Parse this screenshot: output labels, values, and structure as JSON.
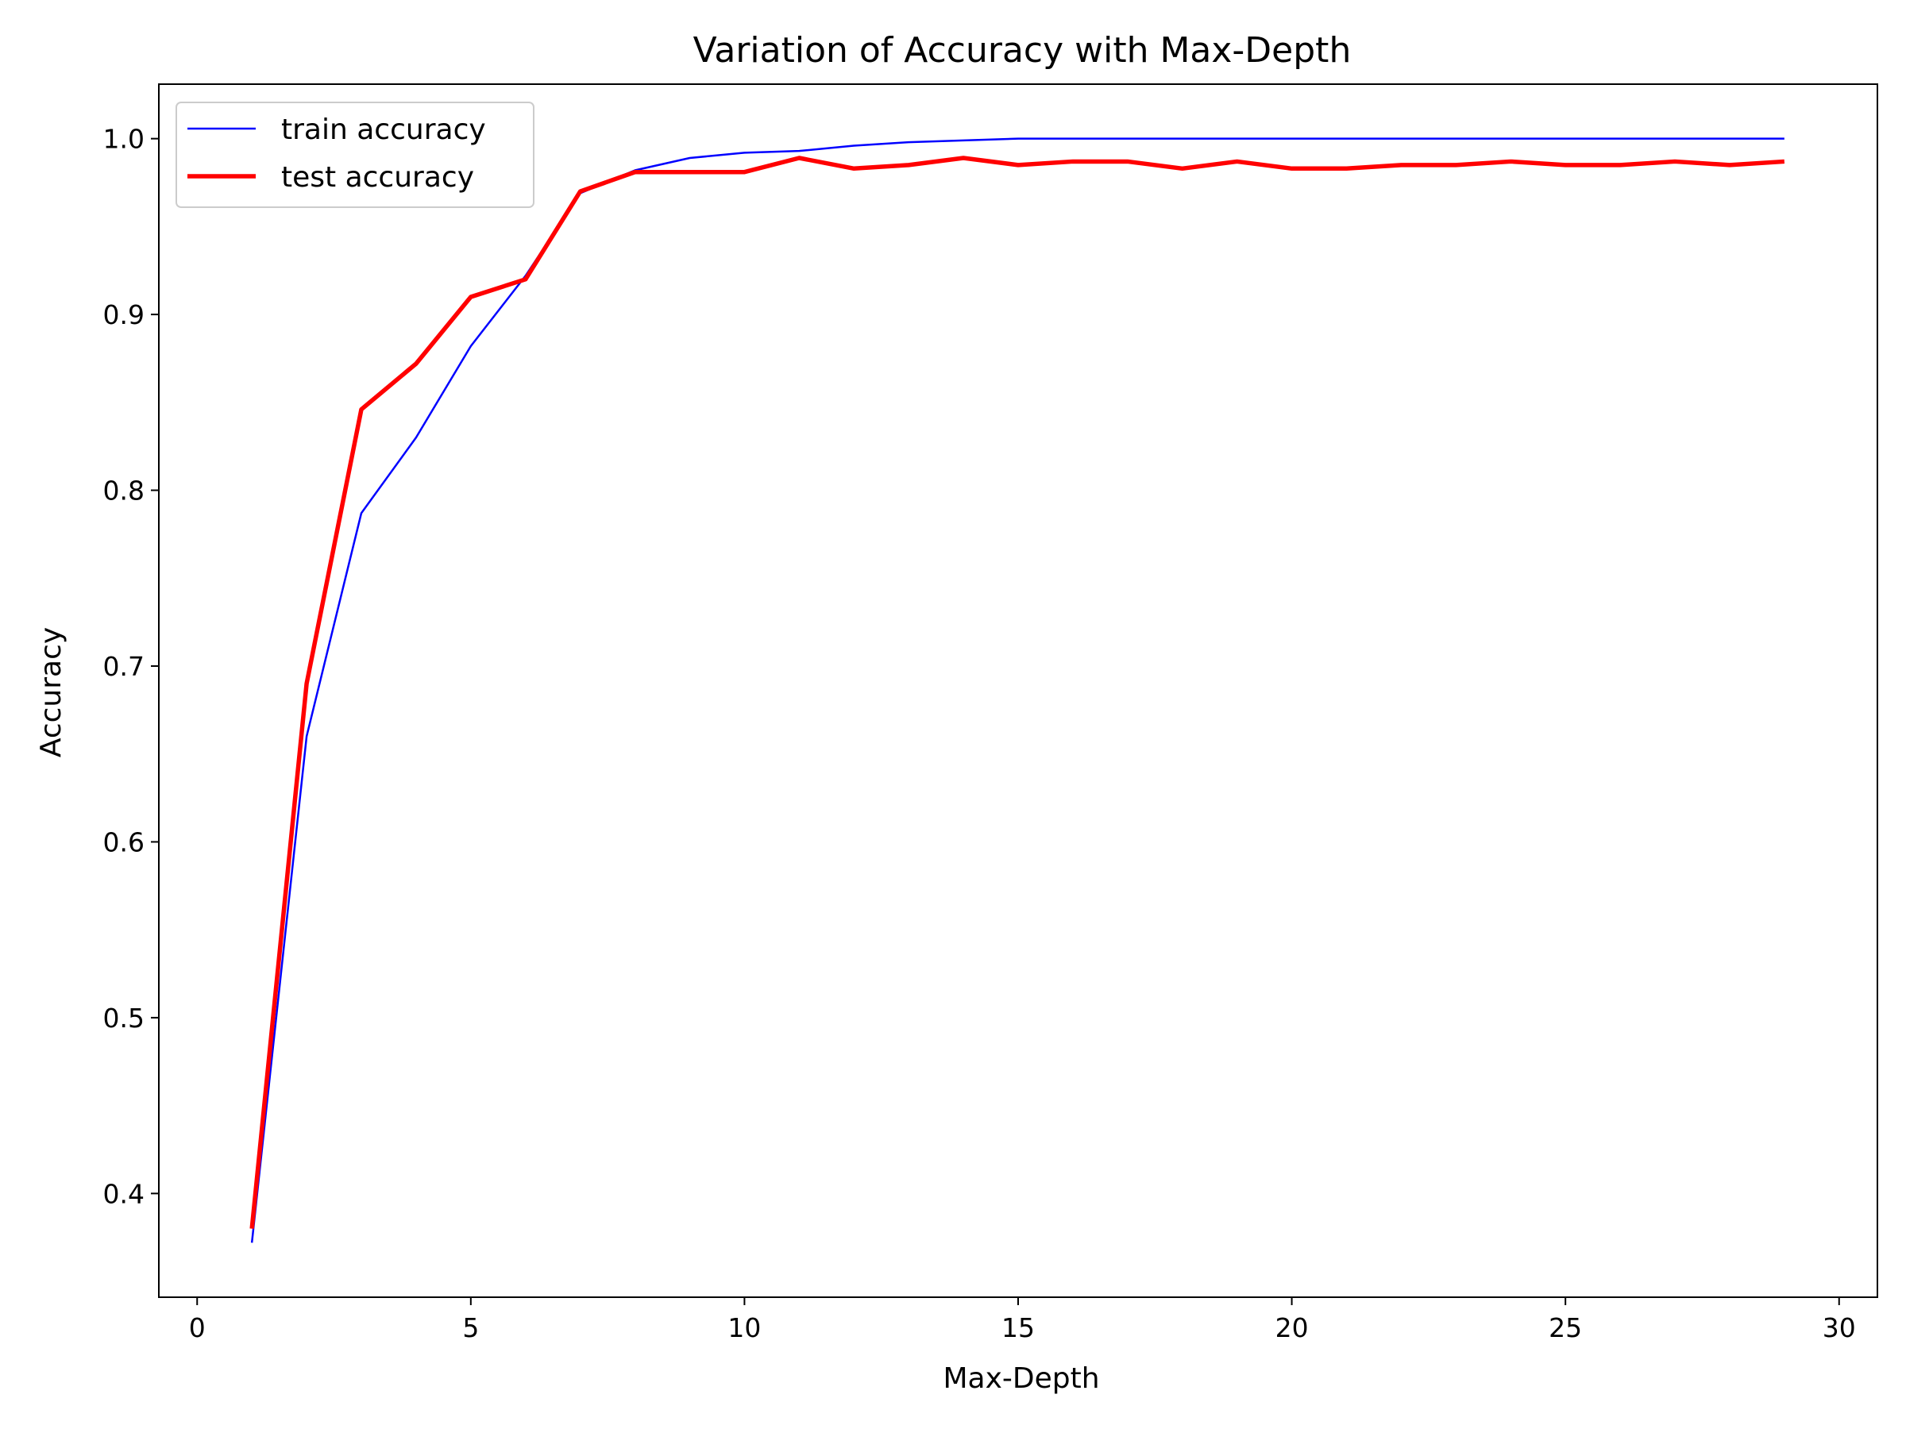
{
  "chart_data": {
    "type": "line",
    "title": "Variation of Accuracy with Max-Depth",
    "xlabel": "Max-Depth",
    "ylabel": "Accuracy",
    "xlim": [
      -0.7,
      30.7
    ],
    "ylim": [
      0.341,
      1.031
    ],
    "xticks": [
      0,
      5,
      10,
      15,
      20,
      25,
      30
    ],
    "yticks": [
      0.4,
      0.5,
      0.6,
      0.7,
      0.8,
      0.9,
      1.0
    ],
    "xtick_labels": [
      "0",
      "5",
      "10",
      "15",
      "20",
      "25",
      "30"
    ],
    "ytick_labels": [
      "0.4",
      "0.5",
      "0.6",
      "0.7",
      "0.8",
      "0.9",
      "1.0"
    ],
    "grid": false,
    "legend_position": "top-left",
    "x": [
      1,
      2,
      3,
      4,
      5,
      6,
      7,
      8,
      9,
      10,
      11,
      12,
      13,
      14,
      15,
      16,
      17,
      18,
      19,
      20,
      21,
      22,
      23,
      24,
      25,
      26,
      27,
      28,
      29
    ],
    "series": [
      {
        "name": "train accuracy",
        "color": "#0000ff",
        "line_weight": "thin",
        "values": [
          0.372,
          0.66,
          0.787,
          0.83,
          0.882,
          0.922,
          0.969,
          0.982,
          0.989,
          0.992,
          0.993,
          0.996,
          0.998,
          0.999,
          1.0,
          1.0,
          1.0,
          1.0,
          1.0,
          1.0,
          1.0,
          1.0,
          1.0,
          1.0,
          1.0,
          1.0,
          1.0,
          1.0,
          1.0
        ]
      },
      {
        "name": "test accuracy",
        "color": "#ff0000",
        "line_weight": "thick",
        "values": [
          0.38,
          0.69,
          0.846,
          0.872,
          0.91,
          0.92,
          0.97,
          0.981,
          0.981,
          0.981,
          0.989,
          0.983,
          0.985,
          0.989,
          0.985,
          0.987,
          0.987,
          0.983,
          0.987,
          0.983,
          0.983,
          0.985,
          0.985,
          0.987,
          0.985,
          0.985,
          0.987,
          0.985,
          0.987
        ]
      }
    ]
  }
}
